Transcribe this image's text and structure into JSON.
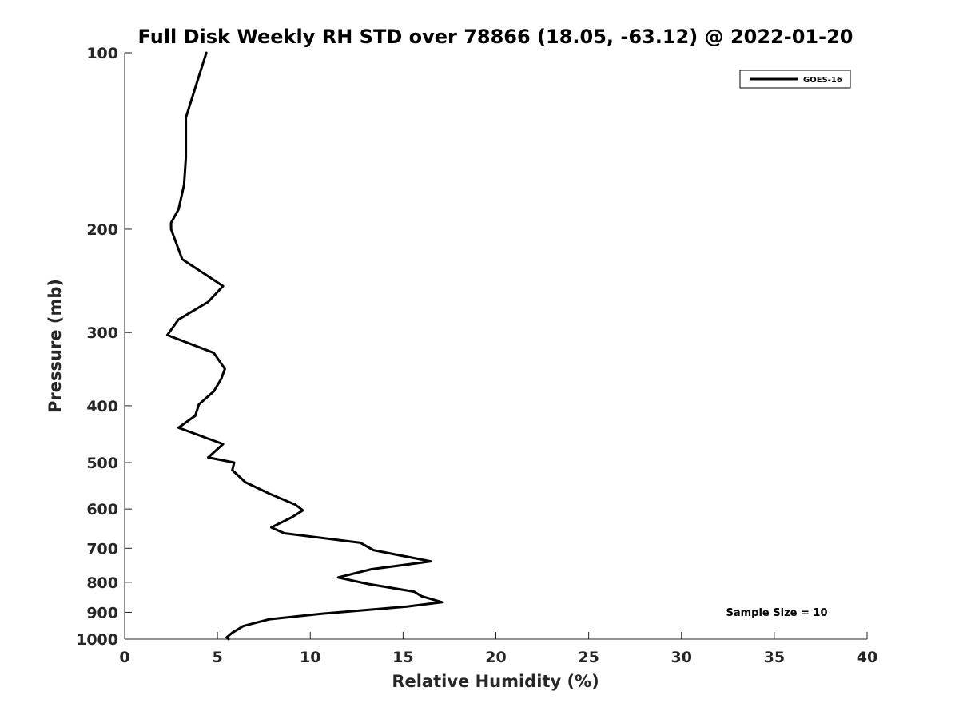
{
  "chart_data": {
    "type": "line",
    "title": "Full Disk Weekly RH STD over 78866 (18.05, -63.12) @ 2022-01-20",
    "xlabel": "Relative Humidity (%)",
    "ylabel": "Pressure (mb)",
    "xlim": [
      0,
      40
    ],
    "ylim": [
      100,
      1000
    ],
    "y_scale": "log",
    "y_reversed": true,
    "x_ticks": [
      0,
      5,
      10,
      15,
      20,
      25,
      30,
      35,
      40
    ],
    "y_ticks": [
      100,
      200,
      300,
      400,
      500,
      600,
      700,
      800,
      900,
      1000
    ],
    "grid": false,
    "legend_position": "top-right",
    "annotation": "Sample Size = 10",
    "series": [
      {
        "name": "GOES-16",
        "color": "#000000",
        "x": [
          4.4,
          3.3,
          3.3,
          3.2,
          2.9,
          2.5,
          2.5,
          3.1,
          5.3,
          4.5,
          2.9,
          2.3,
          4.8,
          5.4,
          5.2,
          4.8,
          4.0,
          3.8,
          2.9,
          5.3,
          4.5,
          5.9,
          5.8,
          6.5,
          7.8,
          9.2,
          9.6,
          9.0,
          7.9,
          8.6,
          12.7,
          13.4,
          16.5,
          13.3,
          11.5,
          13.1,
          15.6,
          16.0,
          17.1,
          15.2,
          10.6,
          7.8,
          6.4,
          5.8,
          5.5,
          5.6
        ],
        "y": [
          100,
          129,
          151,
          168,
          185,
          195,
          200,
          225,
          250,
          266,
          285,
          303,
          325,
          346,
          360,
          378,
          398,
          416,
          436,
          465,
          490,
          500,
          515,
          540,
          565,
          590,
          603,
          620,
          645,
          660,
          685,
          705,
          737,
          760,
          785,
          805,
          830,
          845,
          865,
          880,
          905,
          925,
          950,
          975,
          993,
          1000
        ]
      }
    ]
  }
}
